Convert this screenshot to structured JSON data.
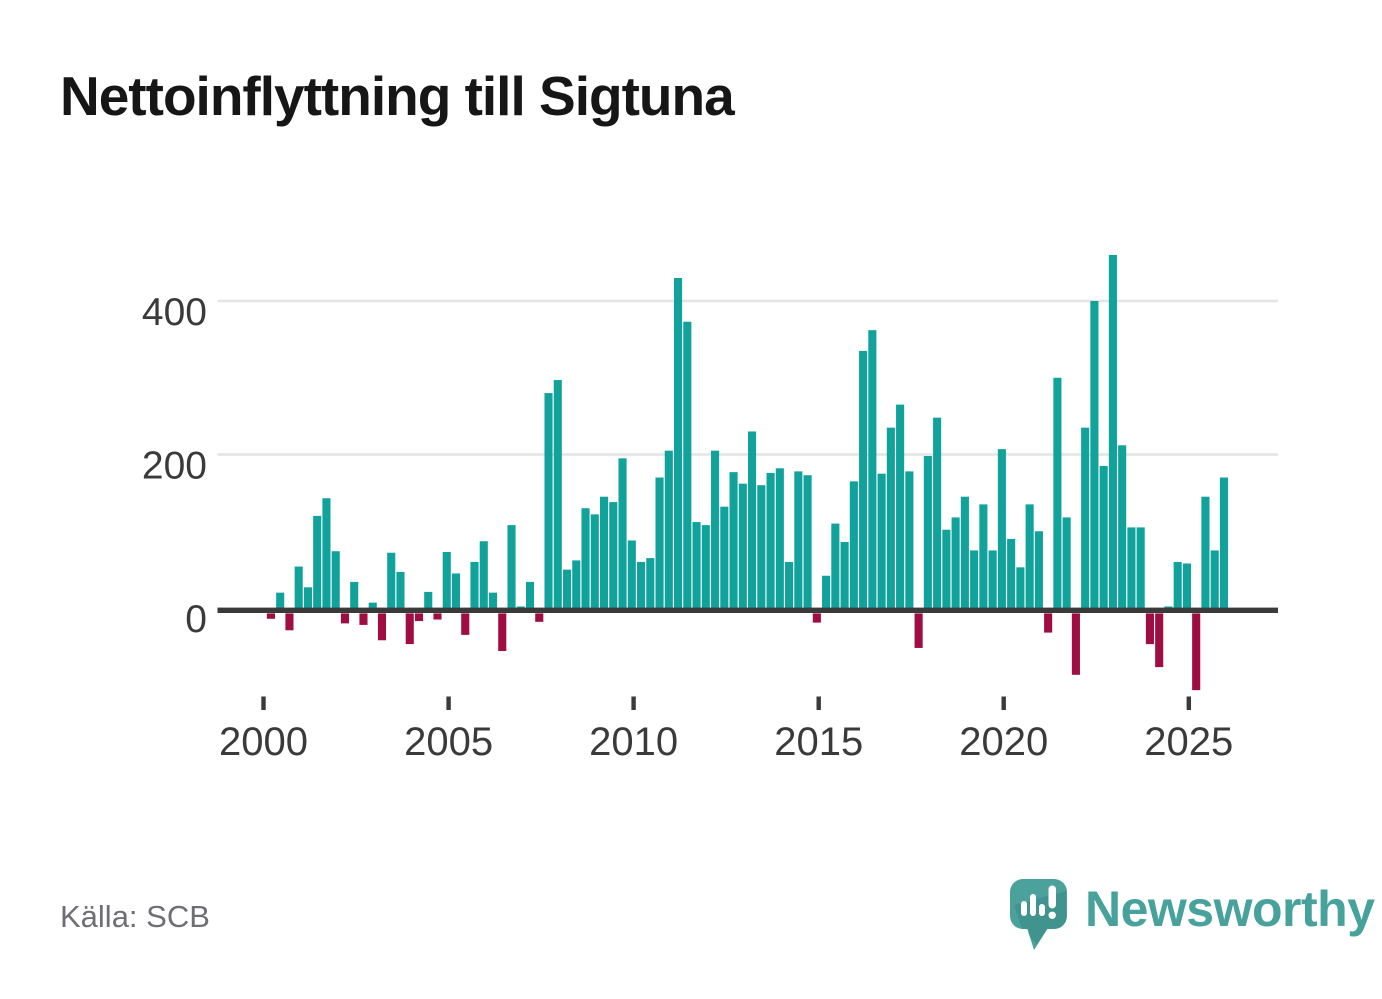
{
  "page": {
    "title": "Nettoinflyttning till Sigtuna",
    "source": "Källa: SCB"
  },
  "brand": {
    "name": "Newsworthy",
    "teal": "#46a29b"
  },
  "colors": {
    "positive_bar": "#11a29b",
    "negative_bar": "#a00d42",
    "axis_line": "#3a3a3a",
    "gridline": "#e4e4e4",
    "tick_label": "#3a3a3a",
    "title_text": "#161616",
    "source_text": "#6e6e73"
  },
  "chart_data": {
    "type": "bar",
    "title": "Nettoinflyttning till Sigtuna",
    "xlabel": "",
    "ylabel": "",
    "grid": "horizontal",
    "legend": "none",
    "ylim": [
      -120,
      480
    ],
    "y_ticks": [
      0,
      200,
      400
    ],
    "y_grid_values": [
      200,
      400
    ],
    "x_tick_labels": [
      "2000",
      "2005",
      "2010",
      "2015",
      "2020",
      "2025"
    ],
    "categories": [
      "2000 Q1",
      "2000 Q2",
      "2000 Q3",
      "2000 Q4",
      "2001 Q1",
      "2001 Q2",
      "2001 Q3",
      "2001 Q4",
      "2002 Q1",
      "2002 Q2",
      "2002 Q3",
      "2002 Q4",
      "2003 Q1",
      "2003 Q2",
      "2003 Q3",
      "2003 Q4",
      "2004 Q1",
      "2004 Q2",
      "2004 Q3",
      "2004 Q4",
      "2005 Q1",
      "2005 Q2",
      "2005 Q3",
      "2005 Q4",
      "2006 Q1",
      "2006 Q2",
      "2006 Q3",
      "2006 Q4",
      "2007 Q1",
      "2007 Q2",
      "2007 Q3",
      "2007 Q4",
      "2008 Q1",
      "2008 Q2",
      "2008 Q3",
      "2008 Q4",
      "2009 Q1",
      "2009 Q2",
      "2009 Q3",
      "2009 Q4",
      "2010 Q1",
      "2010 Q2",
      "2010 Q3",
      "2010 Q4",
      "2011 Q1",
      "2011 Q2",
      "2011 Q3",
      "2011 Q4",
      "2012 Q1",
      "2012 Q2",
      "2012 Q3",
      "2012 Q4",
      "2013 Q1",
      "2013 Q2",
      "2013 Q3",
      "2013 Q4",
      "2014 Q1",
      "2014 Q2",
      "2014 Q3",
      "2014 Q4",
      "2015 Q1",
      "2015 Q2",
      "2015 Q3",
      "2015 Q4",
      "2016 Q1",
      "2016 Q2",
      "2016 Q3",
      "2016 Q4",
      "2017 Q1",
      "2017 Q2",
      "2017 Q3",
      "2017 Q4",
      "2018 Q1",
      "2018 Q2",
      "2018 Q3",
      "2018 Q4",
      "2019 Q1",
      "2019 Q2",
      "2019 Q3",
      "2019 Q4",
      "2020 Q1",
      "2020 Q2",
      "2020 Q3",
      "2020 Q4",
      "2021 Q1",
      "2021 Q2",
      "2021 Q3",
      "2021 Q4",
      "2022 Q1",
      "2022 Q2",
      "2022 Q3",
      "2022 Q4",
      "2023 Q1",
      "2023 Q2",
      "2023 Q3",
      "2023 Q4",
      "2024 Q1",
      "2024 Q2",
      "2024 Q3",
      "2024 Q4",
      "2025 Q1",
      "2025 Q2",
      "2025 Q3",
      "2025 Q4"
    ],
    "values": [
      -7,
      20,
      -22,
      54,
      27,
      120,
      143,
      74,
      -13,
      34,
      -15,
      7,
      -35,
      72,
      47,
      -40,
      -10,
      21,
      -8,
      73,
      45,
      -28,
      60,
      87,
      20,
      -49,
      108,
      2,
      34,
      -11,
      280,
      297,
      50,
      62,
      130,
      122,
      145,
      138,
      195,
      88,
      60,
      65,
      170,
      205,
      430,
      373,
      112,
      108,
      205,
      132,
      177,
      162,
      230,
      160,
      176,
      182,
      60,
      178,
      173,
      -12,
      42,
      110,
      86,
      165,
      335,
      362,
      175,
      235,
      265,
      178,
      -45,
      198,
      248,
      102,
      118,
      145,
      75,
      135,
      75,
      207,
      90,
      53,
      135,
      100,
      -25,
      300,
      118,
      -80,
      235,
      400,
      185,
      460,
      212,
      105,
      105,
      -40,
      -70,
      2,
      60,
      58,
      -100,
      145,
      75,
      170
    ]
  }
}
